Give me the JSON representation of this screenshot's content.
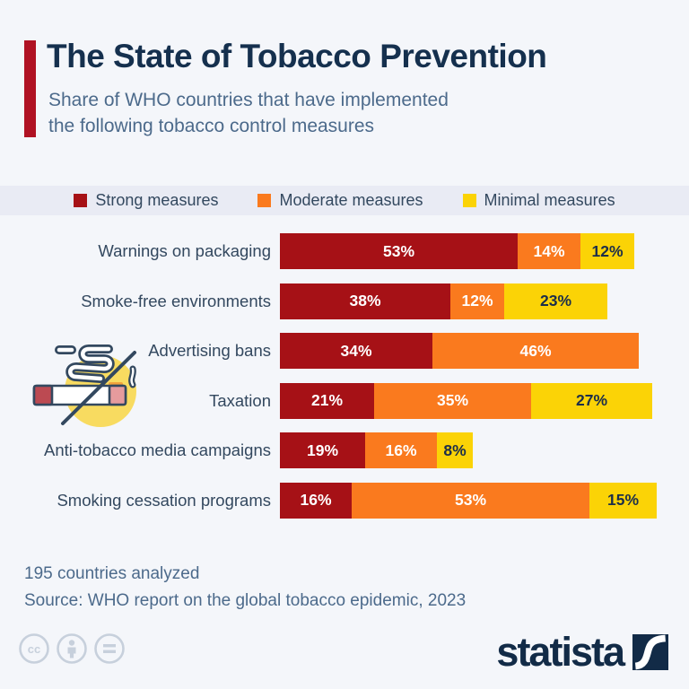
{
  "header": {
    "title": "The State of Tobacco Prevention",
    "subtitle": "Share of WHO countries that have implemented\nthe following tobacco control measures"
  },
  "chart_data": {
    "type": "stacked_bar_horizontal",
    "unit": "%",
    "xlim": [
      0,
      100
    ],
    "legend_position": "top",
    "categories": [
      "Warnings on packaging",
      "Smoke-free environments",
      "Advertising bans",
      "Taxation",
      "Anti-tobacco media campaigns",
      "Smoking cessation programs"
    ],
    "series": [
      {
        "name": "Strong measures",
        "color": "#A61116",
        "text_color": "#FFFFFF",
        "values": [
          53,
          38,
          34,
          21,
          19,
          16
        ]
      },
      {
        "name": "Moderate measures",
        "color": "#FA7A1E",
        "text_color": "#FFFFFF",
        "values": [
          14,
          12,
          46,
          35,
          16,
          53
        ]
      },
      {
        "name": "Minimal measures",
        "color": "#FBD306",
        "text_color": "#1C2E4A",
        "values": [
          12,
          23,
          null,
          27,
          8,
          15
        ]
      }
    ],
    "value_suffix": "%"
  },
  "footer": {
    "note": "195 countries analyzed",
    "source": "Source: WHO report on the global tobacco epidemic, 2023"
  },
  "branding": {
    "logo_text": "statista",
    "license_icons": [
      "cc-icon",
      "attribution-icon",
      "equals-icon"
    ]
  },
  "decorations": {
    "chart_icon": "no-smoking-cigarette-icon"
  },
  "colors": {
    "background": "#F4F6FA",
    "legend_band": "#E9EBF4",
    "accent_bar": "#B01223",
    "title": "#15304E",
    "subtitle": "#4C6A8B",
    "strong": "#A61116",
    "moderate": "#FA7A1E",
    "minimal": "#FBD306",
    "logo_navy": "#122B47"
  }
}
